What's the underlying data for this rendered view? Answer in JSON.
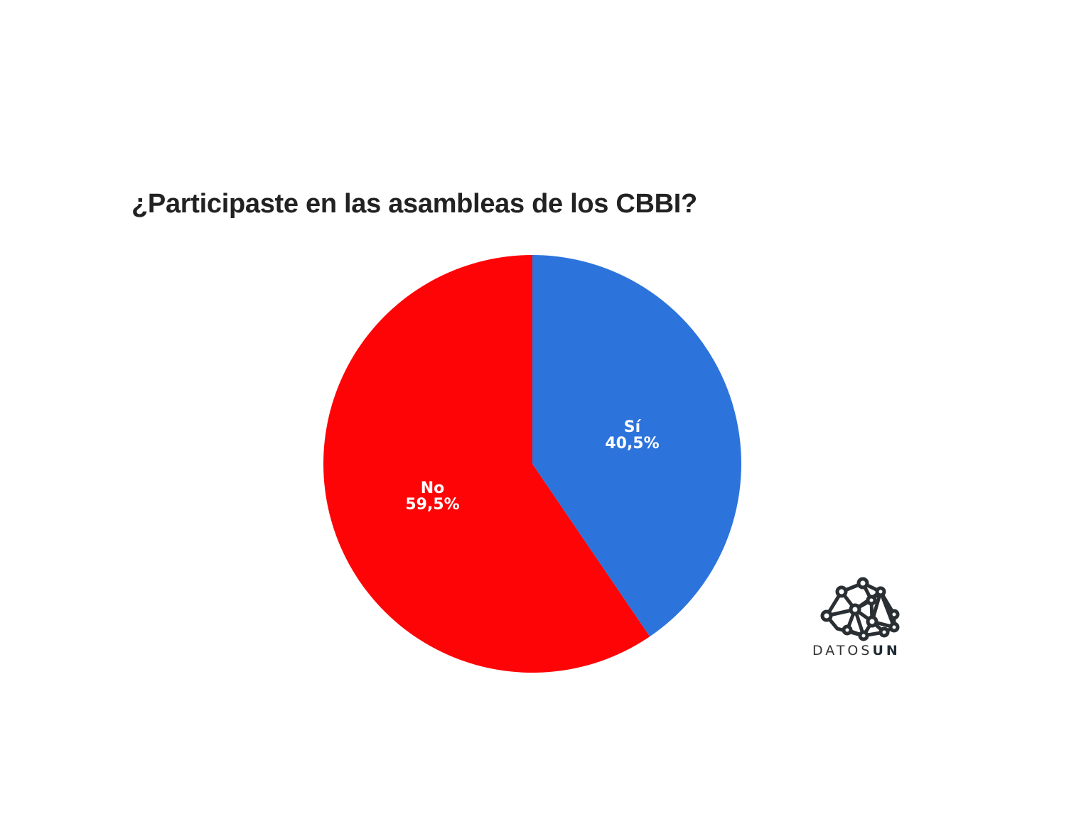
{
  "chart_data": {
    "type": "pie",
    "title": "¿Participaste en las asambleas de los CBBI?",
    "slices": [
      {
        "label": "Sí",
        "value": 40.5,
        "display": "40,5%",
        "color": "#2c74dc"
      },
      {
        "label": "No",
        "value": 59.5,
        "display": "59,5%",
        "color": "#fe0407"
      }
    ],
    "start_angle": "top",
    "direction": "clockwise",
    "legend": "none"
  },
  "logo": {
    "text_light": "DATOS",
    "text_bold": "UN",
    "icon": "network-graph-icon"
  }
}
